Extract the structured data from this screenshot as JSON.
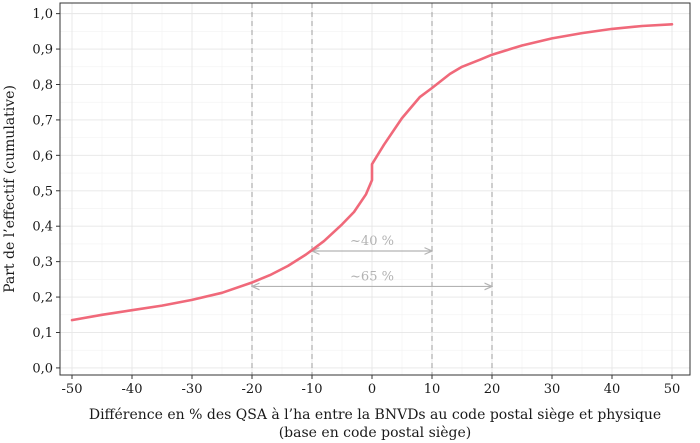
{
  "chart_data": {
    "type": "line",
    "xlabel_line1": "Différence en % des QSA à l’ha entre la BNVDs au code postal siège et physique",
    "xlabel_line2": "(base en code postal siège)",
    "ylabel": "Part de l’effectif (cumulative)",
    "xlim": [
      -52,
      53
    ],
    "ylim": [
      -0.02,
      1.03
    ],
    "x_ticks": [
      -50,
      -40,
      -30,
      -20,
      -10,
      0,
      10,
      20,
      30,
      40,
      50
    ],
    "x_tick_labels": [
      "-50",
      "-40",
      "-30",
      "-20",
      "-10",
      "0",
      "10",
      "20",
      "30",
      "40",
      "50"
    ],
    "y_ticks": [
      0,
      0.1,
      0.2,
      0.3,
      0.4,
      0.5,
      0.6,
      0.7,
      0.8,
      0.9,
      1.0
    ],
    "y_tick_labels": [
      "0,0",
      "0,1",
      "0,2",
      "0,3",
      "0,4",
      "0,5",
      "0,6",
      "0,7",
      "0,8",
      "0,9",
      "1,0"
    ],
    "grid": true,
    "line_color": "#f0697a",
    "series": [
      {
        "x": [
          -50,
          -45,
          -40,
          -35,
          -30,
          -25,
          -20,
          -17,
          -14,
          -11,
          -8,
          -5,
          -3,
          -1,
          0,
          0,
          2,
          5,
          8,
          10,
          13,
          15,
          18,
          20,
          25,
          30,
          35,
          40,
          45,
          50
        ],
        "y": [
          0.135,
          0.15,
          0.163,
          0.176,
          0.192,
          0.212,
          0.241,
          0.262,
          0.288,
          0.32,
          0.358,
          0.405,
          0.44,
          0.49,
          0.53,
          0.575,
          0.63,
          0.705,
          0.765,
          0.79,
          0.83,
          0.85,
          0.87,
          0.884,
          0.91,
          0.93,
          0.945,
          0.957,
          0.965,
          0.97
        ]
      }
    ],
    "vertical_lines": [
      -20,
      -10,
      10,
      20
    ],
    "annotations": [
      {
        "label": "~40 %",
        "x_from": -10,
        "x_to": 10,
        "y": 0.33
      },
      {
        "label": "~65 %",
        "x_from": -20,
        "x_to": 20,
        "y": 0.23
      }
    ],
    "annotation_color": "#b3b3b3"
  }
}
